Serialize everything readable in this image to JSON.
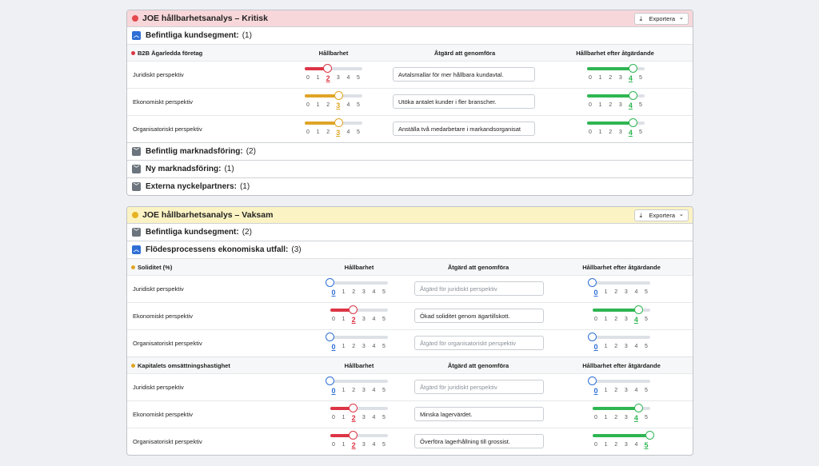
{
  "scale": [
    0,
    1,
    2,
    3,
    4,
    5
  ],
  "scale_colors": [
    "#2f6fd6",
    "#dc3545",
    "#dc3545",
    "#e0a526",
    "#2fb552",
    "#2fb552"
  ],
  "panels": [
    {
      "title": "JOE hållbarhetsanalys – Kritisk",
      "dot_color": "#e5484d",
      "header_bg": "#f8d7da",
      "export": "Exportera",
      "groups": [
        {
          "title": "Befintliga kundsegment:",
          "count": "(1)",
          "expanded": true,
          "tables": [
            {
              "segment": "B2B Ägarledda företag",
              "dot_color": "#dc3545",
              "columns": [
                "Hållbarhet",
                "Åtgärd att genomföra",
                "Hållbarhet efter åtgärdande"
              ],
              "rows": [
                {
                  "label": "Juridiskt perspektiv",
                  "score": 2,
                  "action": "Avtalsmallar för mer hållbara kundavtal.",
                  "score_after": 4
                },
                {
                  "label": "Ekonomiskt perspektiv",
                  "score": 3,
                  "action": "Utöka antalet kunder i fler branscher.",
                  "score_after": 4
                },
                {
                  "label": "Organisatoriskt perspektiv",
                  "score": 3,
                  "action": "Anställa två medarbetare i markandsorganisat",
                  "score_after": 4
                }
              ]
            }
          ]
        },
        {
          "title": "Befintlig marknadsföring:",
          "count": "(2)",
          "expanded": false
        },
        {
          "title": "Ny marknadsföring:",
          "count": "(1)",
          "expanded": false
        },
        {
          "title": "Externa nyckelpartners:",
          "count": "(1)",
          "expanded": false
        }
      ]
    },
    {
      "title": "JOE hållbarhetsanalys – Vaksam",
      "dot_color": "#e6b422",
      "header_bg": "#fbf3c4",
      "export": "Exportera",
      "groups": [
        {
          "title": "Befintliga kundsegment:",
          "count": "(2)",
          "expanded": false
        },
        {
          "title": "Flödesprocessens ekonomiska utfall:",
          "count": "(3)",
          "expanded": true,
          "tables": [
            {
              "segment": "Soliditet (%)",
              "dot_color": "#e0a526",
              "columns": [
                "Hållbarhet",
                "Åtgärd att genomföra",
                "Hållbarhet efter åtgärdande"
              ],
              "rows": [
                {
                  "label": "Juridiskt perspektiv",
                  "score": 0,
                  "placeholder": "Åtgärd för juridiskt perspektiv",
                  "score_after": 0
                },
                {
                  "label": "Ekonomiskt perspektiv",
                  "score": 2,
                  "action": "Ökad soliditet genom ägartillskott.",
                  "score_after": 4
                },
                {
                  "label": "Organisatoriskt perspektiv",
                  "score": 0,
                  "placeholder": "Åtgärd för organisatoriskt perspektiv",
                  "score_after": 0
                }
              ]
            },
            {
              "segment": "Kapitalets omsättningshastighet",
              "dot_color": "#e0a526",
              "columns": [
                "Hållbarhet",
                "Åtgärd att genomföra",
                "Hållbarhet efter åtgärdande"
              ],
              "rows": [
                {
                  "label": "Juridiskt perspektiv",
                  "score": 0,
                  "placeholder": "Åtgärd för juridiskt perspektiv",
                  "score_after": 0
                },
                {
                  "label": "Ekonomiskt perspektiv",
                  "score": 2,
                  "action": "Minska lagervärdet.",
                  "score_after": 4
                },
                {
                  "label": "Organisatoriskt perspektiv",
                  "score": 2,
                  "action": "Överföra lagerhållning till grossist.",
                  "score_after": 5
                }
              ]
            }
          ]
        }
      ]
    }
  ]
}
